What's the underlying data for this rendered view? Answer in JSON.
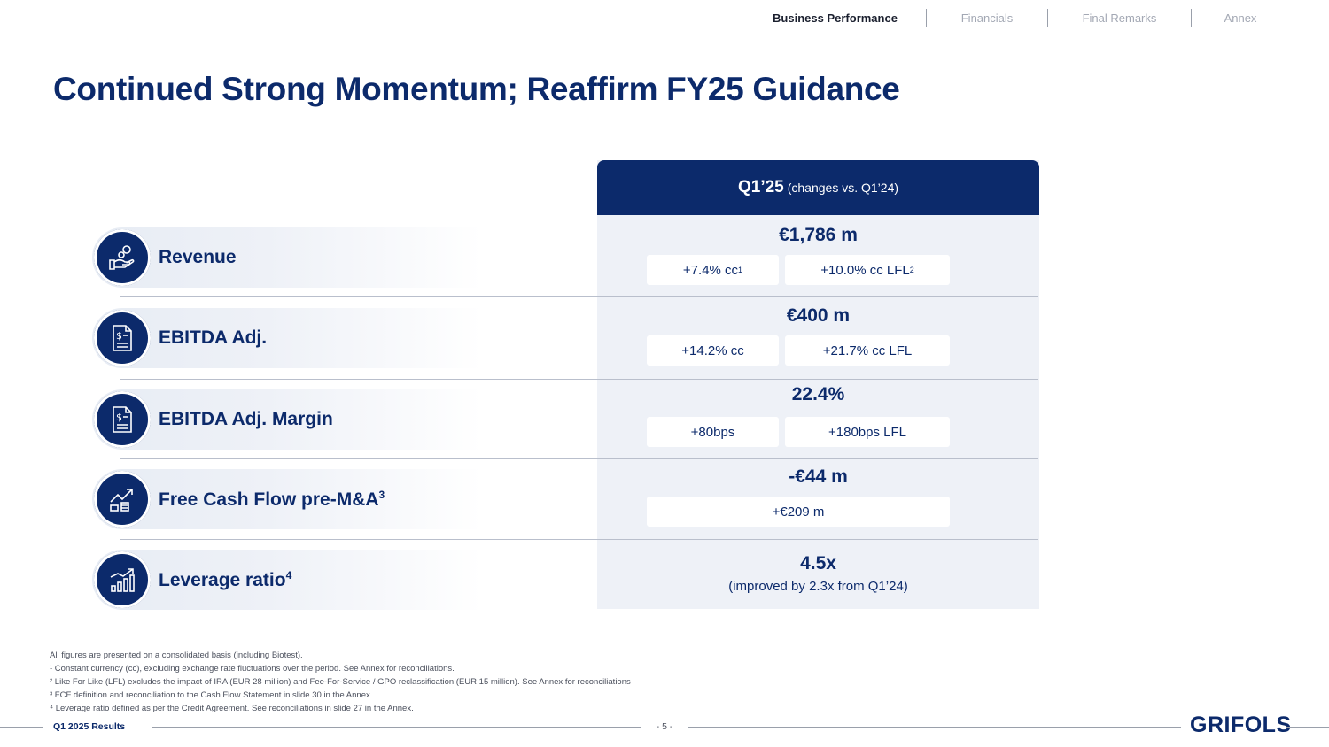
{
  "nav": {
    "items": [
      "Business Performance",
      "Financials",
      "Final Remarks",
      "Annex"
    ]
  },
  "title": "Continued Strong Momentum; Reaffirm FY25 Guidance",
  "panel": {
    "period": "Q1’25",
    "period_note": "(changes vs. Q1’24)"
  },
  "metrics": [
    {
      "label": "Revenue",
      "icon": "hand-coins-icon",
      "value": "€1,786 m",
      "chip1": "+7.4% cc",
      "chip1_sup": "1",
      "chip2": "+10.0% cc LFL",
      "chip2_sup": "2"
    },
    {
      "label": "EBITDA Adj.",
      "icon": "dollar-document-icon",
      "value": "€400 m",
      "chip1": "+14.2% cc",
      "chip2": "+21.7% cc LFL"
    },
    {
      "label": "EBITDA Adj. Margin",
      "icon": "dollar-document-icon",
      "value": "22.4%",
      "chip1": "+80bps",
      "chip2": "+180bps LFL"
    },
    {
      "label": "Free Cash Flow pre-M&A",
      "label_sup": "3",
      "icon": "growth-coins-icon",
      "value": "-€44 m",
      "chip": "+€209 m"
    },
    {
      "label": "Leverage ratio",
      "label_sup": "4",
      "icon": "bar-chart-icon",
      "value": "4.5x",
      "note": "(improved by 2.3x from Q1’24)"
    }
  ],
  "footnotes": [
    "All figures are presented on a consolidated basis (including Biotest).",
    "¹ Constant currency (cc), excluding exchange rate fluctuations over the period. See Annex for reconciliations.",
    "² Like For Like (LFL) excludes the impact of IRA (EUR 28 million) and Fee-For-Service / GPO reclassification (EUR 15 million). See Annex for reconciliations",
    "³ FCF definition and reconciliation to the Cash Flow Statement in slide 30 in the Annex.",
    "⁴ Leverage ratio defined as per the Credit Agreement. See reconciliations in slide 27 in the Annex."
  ],
  "footer": {
    "left": "Q1 2025 Results",
    "page": "- 5 -",
    "logo": "GRIFOLS"
  },
  "colors": {
    "navy": "#0c2a6b",
    "panel_bg": "#eef1f7"
  }
}
